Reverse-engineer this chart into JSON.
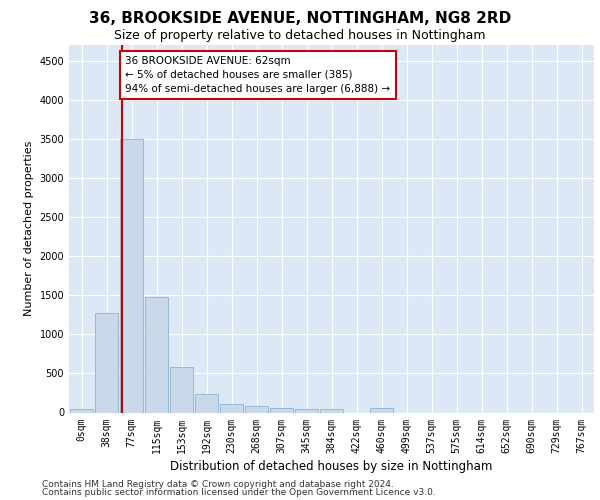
{
  "title1": "36, BROOKSIDE AVENUE, NOTTINGHAM, NG8 2RD",
  "title2": "Size of property relative to detached houses in Nottingham",
  "xlabel": "Distribution of detached houses by size in Nottingham",
  "ylabel": "Number of detached properties",
  "bar_labels": [
    "0sqm",
    "38sqm",
    "77sqm",
    "115sqm",
    "153sqm",
    "192sqm",
    "230sqm",
    "268sqm",
    "307sqm",
    "345sqm",
    "384sqm",
    "422sqm",
    "460sqm",
    "499sqm",
    "537sqm",
    "575sqm",
    "614sqm",
    "652sqm",
    "690sqm",
    "729sqm",
    "767sqm"
  ],
  "bar_values": [
    40,
    1270,
    3500,
    1480,
    580,
    240,
    115,
    80,
    55,
    50,
    45,
    0,
    55,
    0,
    0,
    0,
    0,
    0,
    0,
    0,
    0
  ],
  "bar_color": "#c9d9ea",
  "bar_edge_color": "#7fa8c8",
  "property_line_x": 1.615,
  "annotation_line1": "36 BROOKSIDE AVENUE: 62sqm",
  "annotation_line2": "← 5% of detached houses are smaller (385)",
  "annotation_line3": "94% of semi-detached houses are larger (6,888) →",
  "vline_color": "#cc0000",
  "ylim": [
    0,
    4700
  ],
  "yticks": [
    0,
    500,
    1000,
    1500,
    2000,
    2500,
    3000,
    3500,
    4000,
    4500
  ],
  "footer1": "Contains HM Land Registry data © Crown copyright and database right 2024.",
  "footer2": "Contains public sector information licensed under the Open Government Licence v3.0.",
  "plot_bg_color": "#dce8f5",
  "title1_fontsize": 11,
  "title2_fontsize": 9,
  "xlabel_fontsize": 8.5,
  "ylabel_fontsize": 8,
  "tick_fontsize": 7,
  "footer_fontsize": 6.5,
  "annot_fontsize": 7.5
}
